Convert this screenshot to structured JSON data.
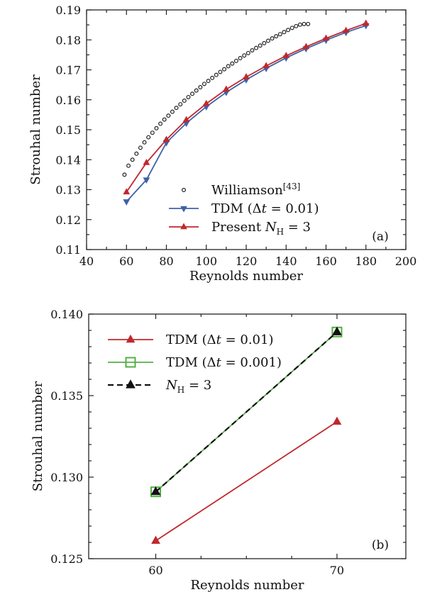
{
  "chart_data": [
    {
      "id": "a",
      "type": "line",
      "panel_label": "(a)",
      "xlabel": "Reynolds number",
      "ylabel": "Strouhal number",
      "xlim": [
        40,
        200
      ],
      "ylim": [
        0.11,
        0.19
      ],
      "xticks": [
        40,
        60,
        80,
        100,
        120,
        140,
        160,
        180,
        200
      ],
      "xtick_labels": [
        "40",
        "60",
        "80",
        "100",
        "120",
        "140",
        "160",
        "180",
        "200"
      ],
      "yticks": [
        0.11,
        0.12,
        0.13,
        0.14,
        0.15,
        0.16,
        0.17,
        0.18,
        0.19
      ],
      "ytick_labels": [
        "0.11",
        "0.12",
        "0.13",
        "0.14",
        "0.15",
        "0.16",
        "0.17",
        "0.18",
        "0.19"
      ],
      "legend_position": "bottom-center",
      "series": [
        {
          "name": "Williamson[43]",
          "label_main": "Williamson",
          "label_sup": "[43]",
          "style": "circles",
          "color": "#222222",
          "x": [
            59,
            61,
            63,
            65,
            67,
            69,
            71,
            73,
            75,
            77,
            79,
            81,
            83,
            85,
            87,
            89,
            91,
            93,
            95,
            97,
            99,
            101,
            103,
            105,
            107,
            109,
            111,
            113,
            115,
            117,
            119,
            121,
            123,
            125,
            127,
            129,
            131,
            133,
            135,
            137,
            139,
            141,
            143,
            145,
            147,
            149,
            151
          ],
          "y": [
            0.135,
            0.138,
            0.14,
            0.142,
            0.144,
            0.1458,
            0.1475,
            0.149,
            0.1505,
            0.152,
            0.1534,
            0.1547,
            0.156,
            0.1573,
            0.1585,
            0.1597,
            0.1609,
            0.162,
            0.1631,
            0.1642,
            0.1653,
            0.1663,
            0.1673,
            0.1683,
            0.1693,
            0.1702,
            0.1712,
            0.1721,
            0.173,
            0.1739,
            0.1748,
            0.1756,
            0.1765,
            0.1773,
            0.1781,
            0.1789,
            0.1797,
            0.1805,
            0.1812,
            0.1819,
            0.1826,
            0.1833,
            0.184,
            0.1846,
            0.1851,
            0.1853,
            0.1853
          ]
        },
        {
          "name": "TDM (Δt = 0.01)",
          "label_parts": [
            "TDM (",
            "Δ",
            "t",
            " = 0.01)"
          ],
          "style": "line-triangle-down",
          "color": "#3d62a8",
          "x": [
            60,
            70,
            80,
            90,
            100,
            110,
            120,
            130,
            140,
            150,
            160,
            170,
            180
          ],
          "y": [
            0.126,
            0.1333,
            0.1457,
            0.1522,
            0.1577,
            0.1625,
            0.1667,
            0.1705,
            0.174,
            0.1771,
            0.1799,
            0.1825,
            0.1848
          ]
        },
        {
          "name": "Present N_H = 3",
          "label_parts": [
            "Present ",
            "N",
            "H",
            " = 3"
          ],
          "style": "line-triangle-up",
          "color": "#c0282d",
          "x": [
            60,
            70,
            80,
            90,
            100,
            110,
            120,
            130,
            140,
            150,
            160,
            170,
            180
          ],
          "y": [
            0.1292,
            0.139,
            0.1467,
            0.1533,
            0.1587,
            0.1635,
            0.1676,
            0.1713,
            0.1747,
            0.1777,
            0.1805,
            0.1831,
            0.1855
          ]
        }
      ]
    },
    {
      "id": "b",
      "type": "line",
      "panel_label": "(b)",
      "xlabel": "Reynolds number",
      "ylabel": "Strouhal number",
      "xlim": [
        56.3,
        73.8
      ],
      "ylim": [
        0.125,
        0.14
      ],
      "xticks": [
        60,
        70
      ],
      "xtick_labels": [
        "60",
        "70"
      ],
      "xminor": [
        62.5,
        65,
        67.5
      ],
      "yticks": [
        0.125,
        0.13,
        0.135,
        0.14
      ],
      "ytick_labels": [
        "0.125",
        "0.130",
        "0.135",
        "0.140"
      ],
      "yminor": [
        0.126,
        0.127,
        0.128,
        0.129,
        0.131,
        0.132,
        0.133,
        0.134,
        0.136,
        0.137,
        0.138,
        0.139
      ],
      "legend_position": "top-left",
      "series": [
        {
          "name": "TDM (Δt = 0.01)",
          "label_parts": [
            "TDM (",
            "Δ",
            "t",
            " = 0.01)"
          ],
          "style": "line-triangle-up",
          "color": "#c0282d",
          "x": [
            60,
            70
          ],
          "y": [
            0.1261,
            0.1334
          ]
        },
        {
          "name": "TDM (Δt = 0.001)",
          "label_parts": [
            "TDM (",
            "Δ",
            "t",
            " = 0.001)"
          ],
          "style": "line-square-open",
          "color": "#52b043",
          "x": [
            60,
            70
          ],
          "y": [
            0.1291,
            0.1389
          ]
        },
        {
          "name": "N_H = 3",
          "label_parts": [
            "",
            "N",
            "H",
            " = 3"
          ],
          "style": "dash-triangle-black",
          "color": "#111111",
          "x": [
            60,
            70
          ],
          "y": [
            0.1291,
            0.1389
          ]
        }
      ]
    }
  ]
}
